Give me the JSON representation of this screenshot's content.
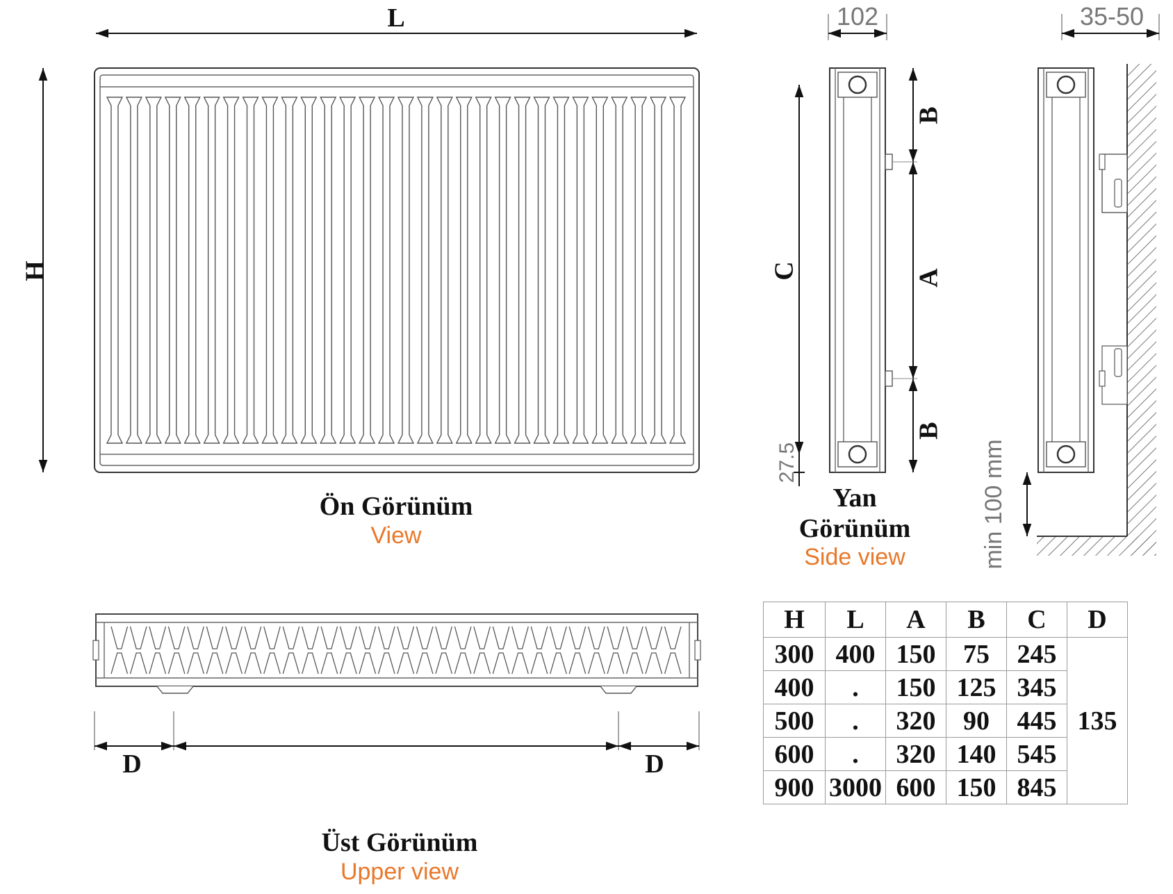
{
  "dimension_labels": {
    "length": "L",
    "height": "H",
    "depth_102": "102",
    "wall_gap": "35-50",
    "c": "C",
    "b_top": "B",
    "a": "A",
    "b_bottom": "B",
    "offset_27_5": "27.5",
    "min_clearance": "min 100 mm",
    "d_left": "D",
    "d_right": "D"
  },
  "captions": {
    "front_tr": "Ön Görünüm",
    "front_en": "View",
    "side_tr_1": "Yan",
    "side_tr_2": "Görünüm",
    "side_en": "Side view",
    "top_tr": "Üst Görünüm",
    "top_en": "Upper view"
  },
  "spec_table": {
    "headers": [
      "H",
      "L",
      "A",
      "B",
      "C",
      "D"
    ],
    "rows": [
      [
        "300",
        "400",
        "150",
        "75",
        "245"
      ],
      [
        "400",
        ".",
        "150",
        "125",
        "345"
      ],
      [
        "500",
        ".",
        "320",
        "90",
        "445"
      ],
      [
        "600",
        ".",
        "320",
        "140",
        "545"
      ],
      [
        "900",
        "3000",
        "600",
        "150",
        "845"
      ]
    ],
    "d_value": "135"
  }
}
